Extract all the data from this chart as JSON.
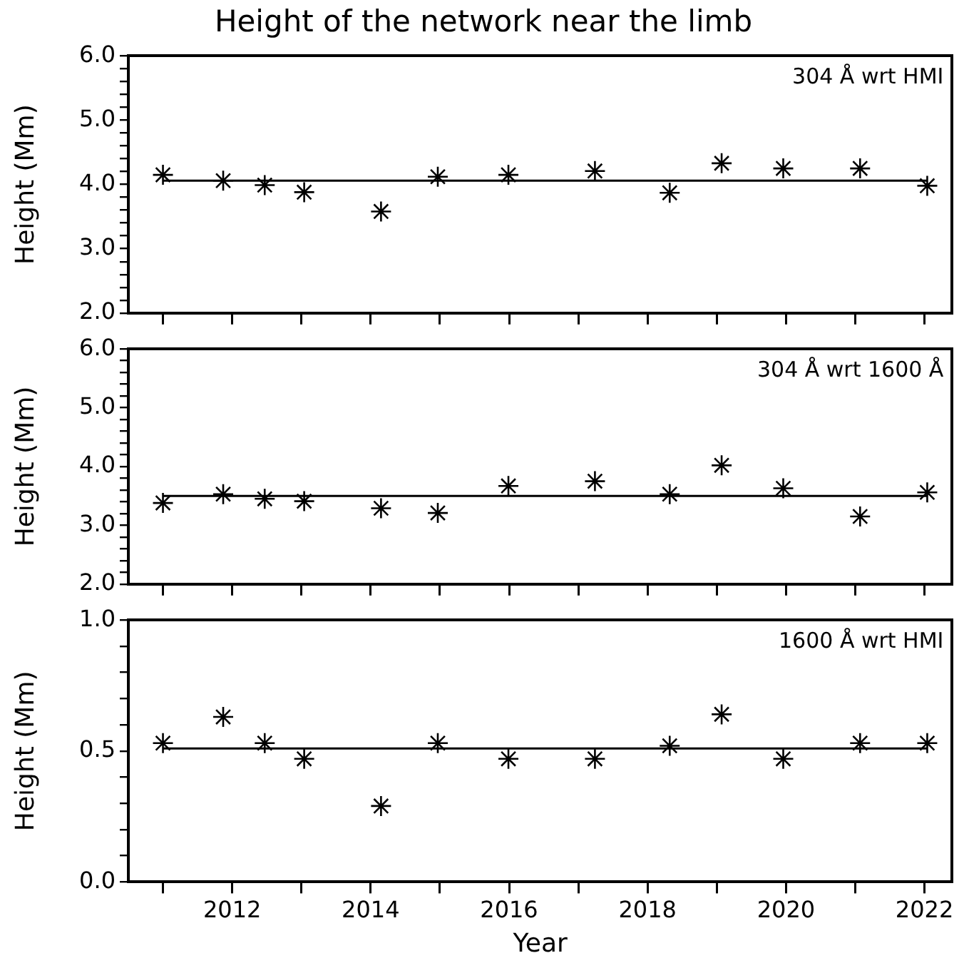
{
  "chart_data": [
    {
      "type": "scatter",
      "title": "Height of the network near the limb",
      "ylabel": "Height (Mm)",
      "annotations": [
        "304 Å wrt HMI"
      ],
      "marker": "cross",
      "grid": false,
      "legend": false,
      "tick_labels": "y",
      "xlim": [
        2010.5,
        2022.4
      ],
      "xticks": [
        {
          "value": 2011,
          "label": null
        },
        {
          "value": 2012,
          "label": null
        },
        {
          "value": 2013,
          "label": null
        },
        {
          "value": 2014,
          "label": null
        },
        {
          "value": 2015,
          "label": null
        },
        {
          "value": 2016,
          "label": null
        },
        {
          "value": 2017,
          "label": null
        },
        {
          "value": 2018,
          "label": null
        },
        {
          "value": 2019,
          "label": null
        },
        {
          "value": 2020,
          "label": null
        },
        {
          "value": 2021,
          "label": null
        },
        {
          "value": 2022,
          "label": null
        }
      ],
      "ylim": [
        2,
        6
      ],
      "yticks": [
        {
          "value": 2,
          "label": "2.0"
        },
        {
          "value": 2.2,
          "label": null
        },
        {
          "value": 2.4,
          "label": null
        },
        {
          "value": 2.6,
          "label": null
        },
        {
          "value": 2.8,
          "label": null
        },
        {
          "value": 3,
          "label": "3.0"
        },
        {
          "value": 3.2,
          "label": null
        },
        {
          "value": 3.4,
          "label": null
        },
        {
          "value": 3.6,
          "label": null
        },
        {
          "value": 3.8,
          "label": null
        },
        {
          "value": 4,
          "label": "4.0"
        },
        {
          "value": 4.2,
          "label": null
        },
        {
          "value": 4.4,
          "label": null
        },
        {
          "value": 4.6,
          "label": null
        },
        {
          "value": 4.8,
          "label": null
        },
        {
          "value": 5,
          "label": "5.0"
        },
        {
          "value": 5.2,
          "label": null
        },
        {
          "value": 5.4,
          "label": null
        },
        {
          "value": 5.6,
          "label": null
        },
        {
          "value": 5.8,
          "label": null
        },
        {
          "value": 6,
          "label": "6.0"
        }
      ],
      "series": [
        {
          "type": "scatter",
          "color": "#000000",
          "x": [
            2011.0,
            2011.87,
            2012.47,
            2013.04,
            2014.15,
            2014.97,
            2015.99,
            2017.24,
            2018.32,
            2019.07,
            2019.96,
            2021.07,
            2022.04
          ],
          "values": [
            4.15,
            4.06,
            3.99,
            3.88,
            3.58,
            4.12,
            4.15,
            4.21,
            3.87,
            4.33,
            4.25,
            4.25,
            3.98
          ]
        },
        {
          "type": "line",
          "color": "#000000",
          "marker": "none",
          "x": [
            2011.0,
            2022.04
          ],
          "values": [
            4.06,
            4.06
          ]
        }
      ]
    },
    {
      "type": "scatter",
      "ylabel": "Height (Mm)",
      "annotations": [
        "304 Å wrt 1600 Å"
      ],
      "marker": "cross",
      "grid": false,
      "legend": false,
      "tick_labels": "y",
      "xlim": [
        2010.5,
        2022.4
      ],
      "xticks": [
        {
          "value": 2011,
          "label": null
        },
        {
          "value": 2012,
          "label": null
        },
        {
          "value": 2013,
          "label": null
        },
        {
          "value": 2014,
          "label": null
        },
        {
          "value": 2015,
          "label": null
        },
        {
          "value": 2016,
          "label": null
        },
        {
          "value": 2017,
          "label": null
        },
        {
          "value": 2018,
          "label": null
        },
        {
          "value": 2019,
          "label": null
        },
        {
          "value": 2020,
          "label": null
        },
        {
          "value": 2021,
          "label": null
        },
        {
          "value": 2022,
          "label": null
        }
      ],
      "ylim": [
        2,
        6
      ],
      "yticks": [
        {
          "value": 2,
          "label": "2.0"
        },
        {
          "value": 2.2,
          "label": null
        },
        {
          "value": 2.4,
          "label": null
        },
        {
          "value": 2.6,
          "label": null
        },
        {
          "value": 2.8,
          "label": null
        },
        {
          "value": 3,
          "label": "3.0"
        },
        {
          "value": 3.2,
          "label": null
        },
        {
          "value": 3.4,
          "label": null
        },
        {
          "value": 3.6,
          "label": null
        },
        {
          "value": 3.8,
          "label": null
        },
        {
          "value": 4,
          "label": "4.0"
        },
        {
          "value": 4.2,
          "label": null
        },
        {
          "value": 4.4,
          "label": null
        },
        {
          "value": 4.6,
          "label": null
        },
        {
          "value": 4.8,
          "label": null
        },
        {
          "value": 5,
          "label": "5.0"
        },
        {
          "value": 5.2,
          "label": null
        },
        {
          "value": 5.4,
          "label": null
        },
        {
          "value": 5.6,
          "label": null
        },
        {
          "value": 5.8,
          "label": null
        },
        {
          "value": 6,
          "label": "6.0"
        }
      ],
      "series": [
        {
          "type": "scatter",
          "color": "#000000",
          "x": [
            2011.0,
            2011.87,
            2012.47,
            2013.04,
            2014.15,
            2014.97,
            2015.99,
            2017.24,
            2018.32,
            2019.07,
            2019.96,
            2021.07,
            2022.04
          ],
          "values": [
            3.38,
            3.53,
            3.45,
            3.41,
            3.29,
            3.21,
            3.67,
            3.75,
            3.53,
            4.02,
            3.63,
            3.15,
            3.56
          ]
        },
        {
          "type": "line",
          "color": "#000000",
          "marker": "none",
          "x": [
            2011.0,
            2022.04
          ],
          "values": [
            3.5,
            3.5
          ]
        }
      ]
    },
    {
      "type": "scatter",
      "xlabel": "Year",
      "ylabel": "Height (Mm)",
      "annotations": [
        "1600 Å wrt HMI"
      ],
      "marker": "cross",
      "grid": false,
      "legend": false,
      "xlim": [
        2010.5,
        2022.4
      ],
      "xticks": [
        {
          "value": 2011,
          "label": null
        },
        2012,
        {
          "value": 2013,
          "label": null
        },
        2014,
        {
          "value": 2015,
          "label": null
        },
        2016,
        {
          "value": 2017,
          "label": null
        },
        2018,
        {
          "value": 2019,
          "label": null
        },
        2020,
        {
          "value": 2021,
          "label": null
        },
        2022
      ],
      "ylim": [
        0,
        1
      ],
      "yticks": [
        {
          "value": 0,
          "label": "0.0"
        },
        {
          "value": 0.1,
          "label": null
        },
        {
          "value": 0.2,
          "label": null
        },
        {
          "value": 0.3,
          "label": null
        },
        {
          "value": 0.4,
          "label": null
        },
        {
          "value": 0.5,
          "label": "0.5"
        },
        {
          "value": 0.6,
          "label": null
        },
        {
          "value": 0.7,
          "label": null
        },
        {
          "value": 0.8,
          "label": null
        },
        {
          "value": 0.9,
          "label": null
        },
        {
          "value": 1,
          "label": "1.0"
        }
      ],
      "series": [
        {
          "type": "scatter",
          "color": "#000000",
          "x": [
            2011.0,
            2011.87,
            2012.47,
            2013.04,
            2014.15,
            2014.97,
            2015.99,
            2017.24,
            2018.32,
            2019.07,
            2019.96,
            2021.07,
            2022.04
          ],
          "values": [
            0.53,
            0.63,
            0.53,
            0.47,
            0.29,
            0.53,
            0.47,
            0.47,
            0.52,
            0.64,
            0.47,
            0.53,
            0.53
          ]
        },
        {
          "type": "line",
          "color": "#000000",
          "marker": "none",
          "x": [
            2011.0,
            2022.04
          ],
          "values": [
            0.51,
            0.51
          ]
        }
      ]
    }
  ]
}
